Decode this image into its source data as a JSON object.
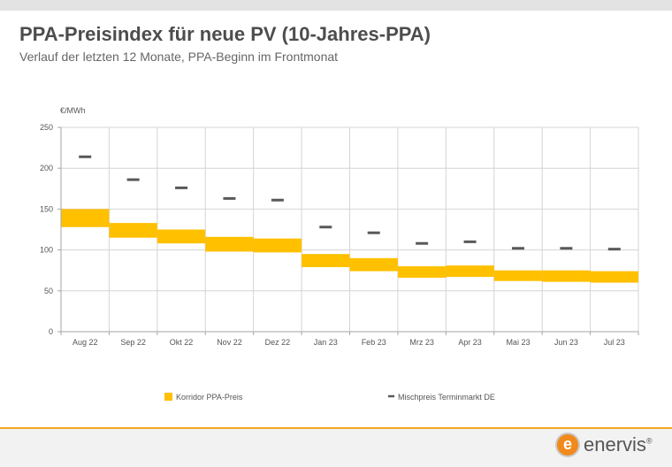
{
  "header": {
    "title": "PPA-Preisindex für neue PV (10-Jahres-PPA)",
    "subtitle": "Verlauf der letzten 12 Monate, PPA-Beginn im Frontmonat"
  },
  "logo": {
    "text": "enervis",
    "mark": "e",
    "trademark": "®"
  },
  "colors": {
    "corridor": "#ffc000",
    "mischpreis": "#595959",
    "grid": "#d4d4d4",
    "axis": "#a6a6a6",
    "accent": "#f5a623"
  },
  "chart_data": {
    "type": "bar",
    "ylabel": "€/MWh",
    "ylim": [
      0,
      250
    ],
    "yticks": [
      0,
      50,
      100,
      150,
      200,
      250
    ],
    "grid": true,
    "legend_position": "bottom",
    "categories": [
      "Aug 22",
      "Sep 22",
      "Okt 22",
      "Nov 22",
      "Dez 22",
      "Jan 23",
      "Feb 23",
      "Mrz 23",
      "Apr 23",
      "Mai 23",
      "Jun 23",
      "Jul 23"
    ],
    "series": [
      {
        "name": "Korridor PPA-Preis",
        "kind": "range",
        "low": [
          128,
          115,
          108,
          98,
          97,
          79,
          74,
          66,
          67,
          62,
          61,
          60
        ],
        "high": [
          150,
          133,
          125,
          116,
          114,
          95,
          90,
          80,
          81,
          75,
          75,
          74
        ]
      },
      {
        "name": "Mischpreis Terminmarkt DE",
        "kind": "marker",
        "values": [
          214,
          186,
          176,
          163,
          161,
          128,
          121,
          108,
          110,
          102,
          102,
          101
        ]
      }
    ]
  }
}
